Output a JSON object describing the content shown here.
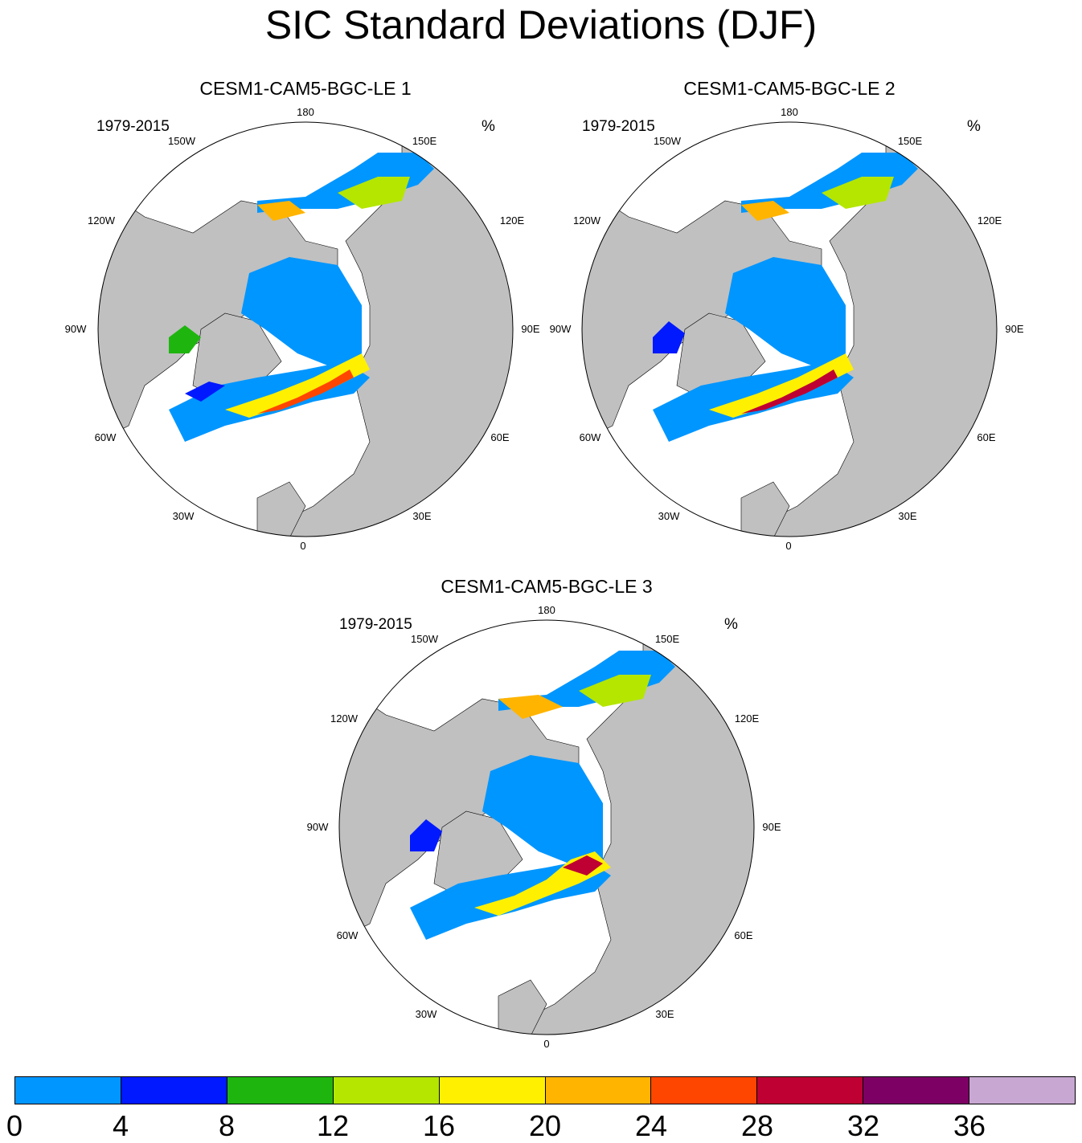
{
  "title": "SIC Standard Deviations (DJF)",
  "panels": [
    {
      "title": "CESM1-CAM5-BGC-LE 1",
      "period": "1979-2015",
      "units": "%"
    },
    {
      "title": "CESM1-CAM5-BGC-LE 2",
      "period": "1979-2015",
      "units": "%"
    },
    {
      "title": "CESM1-CAM5-BGC-LE 3",
      "period": "1979-2015",
      "units": "%"
    }
  ],
  "longitude_labels": [
    "180",
    "150E",
    "120E",
    "90E",
    "60E",
    "30E",
    "0",
    "30W",
    "60W",
    "90W",
    "120W",
    "150W"
  ],
  "colors": {
    "land": "#c0c0c0",
    "ocean": "#ffffff",
    "sic_bins": [
      "#0096ff",
      "#0019ff",
      "#1fb50f",
      "#b4e600",
      "#fff000",
      "#ffb400",
      "#ff4600",
      "#be0032",
      "#7d0064",
      "#c8a8d2"
    ]
  },
  "colorbar": {
    "labels": [
      "0",
      "4",
      "8",
      "12",
      "16",
      "20",
      "24",
      "28",
      "32",
      "36"
    ]
  }
}
